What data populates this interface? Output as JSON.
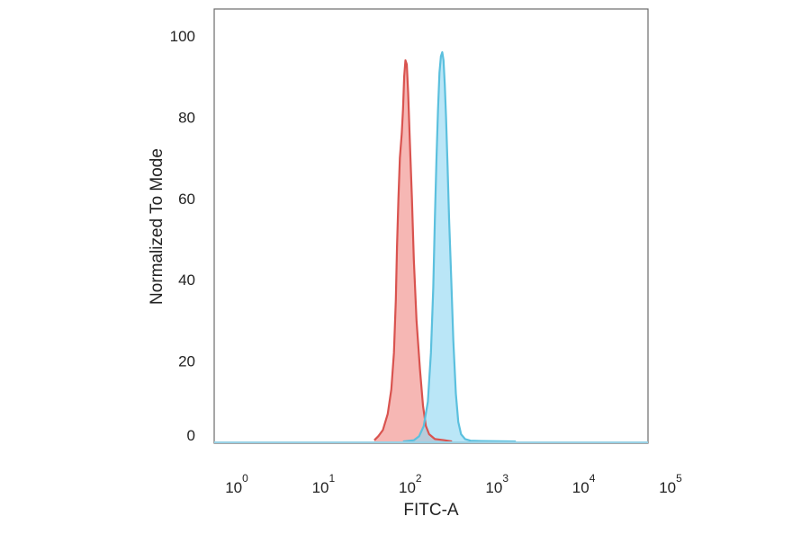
{
  "chart_data": {
    "type": "area",
    "title": "",
    "xlabel": "FITC-A",
    "ylabel": "Normalized To Mode",
    "x_scale": "log",
    "xlim": [
      1,
      100000
    ],
    "ylim": [
      0,
      106
    ],
    "grid": false,
    "legend": "none",
    "x_ticks": [
      {
        "value": 1,
        "base": "10",
        "exp": "0"
      },
      {
        "value": 10,
        "base": "10",
        "exp": "1"
      },
      {
        "value": 100,
        "base": "10",
        "exp": "2"
      },
      {
        "value": 1000,
        "base": "10",
        "exp": "3"
      },
      {
        "value": 10000,
        "base": "10",
        "exp": "4"
      },
      {
        "value": 100000,
        "base": "10",
        "exp": "5"
      }
    ],
    "y_ticks": [
      {
        "value": 0,
        "label": "0"
      },
      {
        "value": 20,
        "label": "20"
      },
      {
        "value": 40,
        "label": "40"
      },
      {
        "value": 60,
        "label": "60"
      },
      {
        "value": 80,
        "label": "80"
      },
      {
        "value": 100,
        "label": "100"
      }
    ],
    "series": [
      {
        "color": "#d9534f",
        "fill": "#f08a86",
        "points": [
          [
            70,
            0.5
          ],
          [
            78,
            1.5
          ],
          [
            88,
            3
          ],
          [
            100,
            7
          ],
          [
            110,
            13
          ],
          [
            118,
            22
          ],
          [
            124,
            35
          ],
          [
            128,
            48
          ],
          [
            133,
            60
          ],
          [
            138,
            70
          ],
          [
            145,
            76
          ],
          [
            150,
            82
          ],
          [
            155,
            90
          ],
          [
            160,
            94
          ],
          [
            166,
            93
          ],
          [
            172,
            86
          ],
          [
            180,
            74
          ],
          [
            190,
            60
          ],
          [
            200,
            45
          ],
          [
            215,
            30
          ],
          [
            235,
            18
          ],
          [
            255,
            9
          ],
          [
            275,
            4
          ],
          [
            300,
            2
          ],
          [
            350,
            0.8
          ],
          [
            450,
            0.5
          ],
          [
            550,
            0.2
          ]
        ]
      },
      {
        "color": "#5bc0de",
        "fill": "#8fd6f2",
        "points": [
          [
            150,
            0.2
          ],
          [
            200,
            0.5
          ],
          [
            230,
            1.5
          ],
          [
            260,
            4
          ],
          [
            290,
            10
          ],
          [
            315,
            22
          ],
          [
            335,
            38
          ],
          [
            350,
            55
          ],
          [
            365,
            70
          ],
          [
            380,
            82
          ],
          [
            395,
            91
          ],
          [
            410,
            95
          ],
          [
            425,
            96
          ],
          [
            440,
            94
          ],
          [
            455,
            88
          ],
          [
            470,
            80
          ],
          [
            490,
            68
          ],
          [
            510,
            55
          ],
          [
            540,
            40
          ],
          [
            570,
            25
          ],
          [
            610,
            12
          ],
          [
            650,
            5
          ],
          [
            700,
            2
          ],
          [
            780,
            0.8
          ],
          [
            900,
            0.4
          ],
          [
            1200,
            0.3
          ],
          [
            3000,
            0.2
          ]
        ]
      }
    ]
  }
}
